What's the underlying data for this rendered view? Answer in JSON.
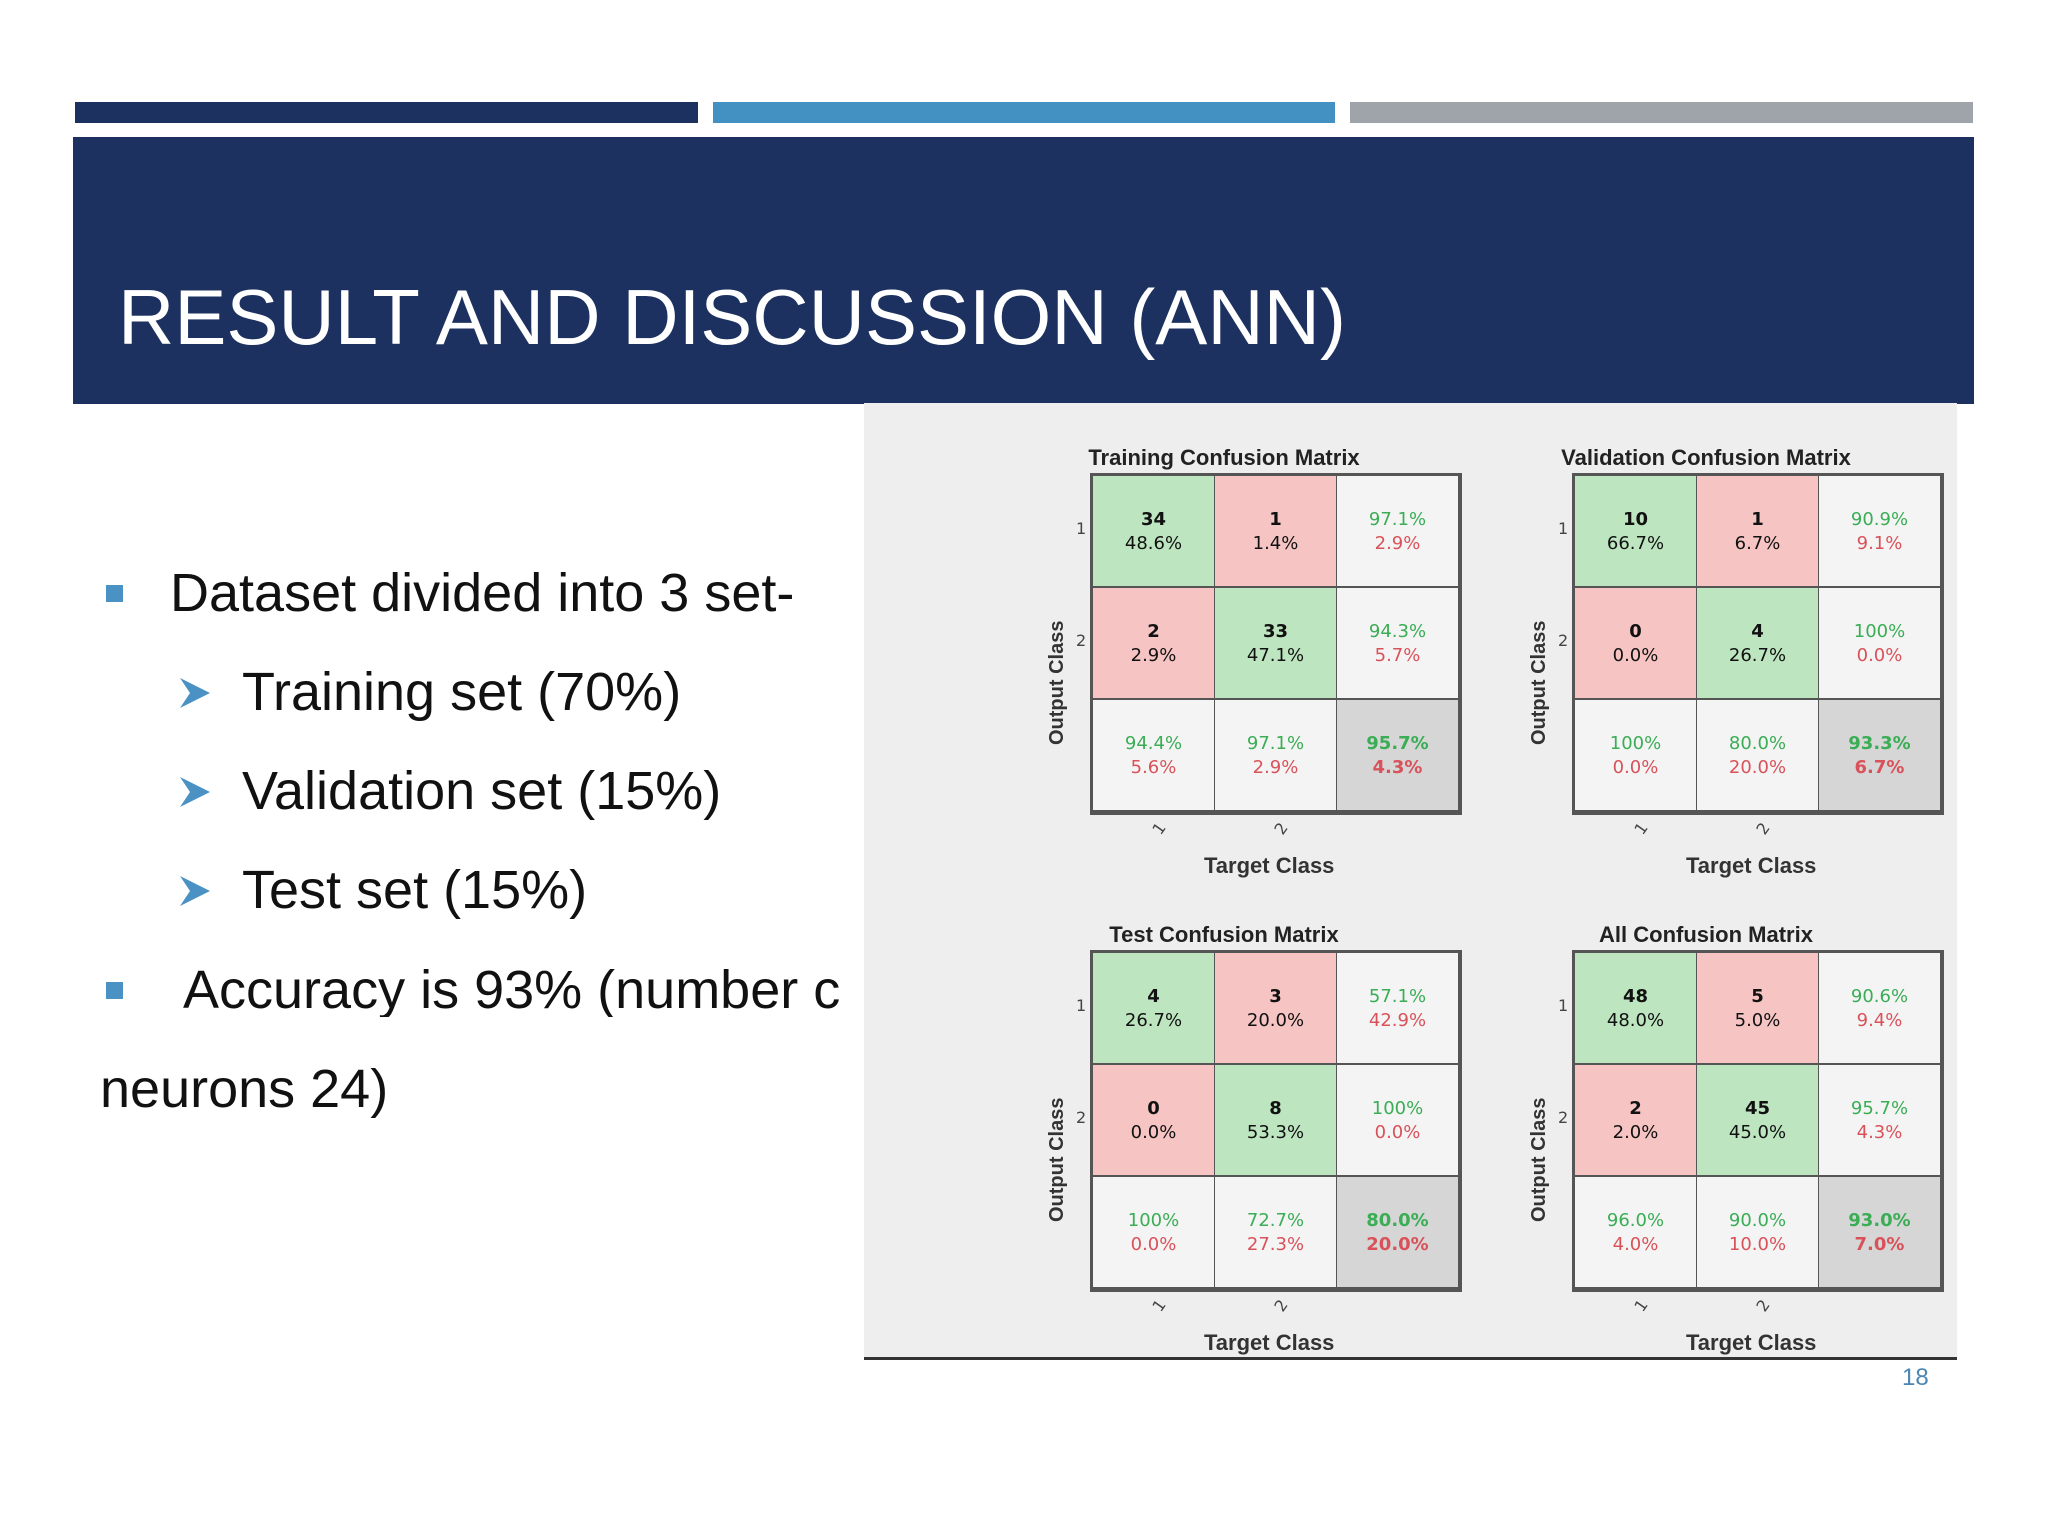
{
  "header": {
    "title": "RESULT AND DISCUSSION (ANN)"
  },
  "bullets": {
    "b1": "Dataset divided into 3 set-",
    "sub1": "Training set (70%)",
    "sub2": "Validation set (15%)",
    "sub3": "Test set (15%)",
    "b2_line1": "Accuracy is 93% (number c",
    "b2_line2": "neurons 24)"
  },
  "colors": {
    "title_band": "#1c315f",
    "bar_dark": "#1d3160",
    "bar_blue": "#4391c3",
    "bar_gray": "#9fa4aa",
    "bullet": "#4a92c4",
    "correct_cell": "#bde5bf",
    "wrong_cell": "#f5c4c3"
  },
  "icons": {
    "bullet": "square-bullet-icon",
    "sub_bullet": "arrow-bullet-icon"
  },
  "slide_number": "18",
  "chart_data": [
    {
      "type": "table",
      "title": "Training Confusion Matrix",
      "xlabel": "Target Class",
      "ylabel": "Output Class",
      "classes": [
        "1",
        "2"
      ],
      "cells": [
        [
          "34",
          "48.6%",
          "1",
          "1.4%",
          "97.1%",
          "2.9%"
        ],
        [
          "2",
          "2.9%",
          "33",
          "47.1%",
          "94.3%",
          "5.7%"
        ],
        [
          "94.4%",
          "5.6%",
          "97.1%",
          "2.9%",
          "95.7%",
          "4.3%"
        ]
      ]
    },
    {
      "type": "table",
      "title": "Validation Confusion Matrix",
      "xlabel": "Target Class",
      "ylabel": "Output Class",
      "classes": [
        "1",
        "2"
      ],
      "cells": [
        [
          "10",
          "66.7%",
          "1",
          "6.7%",
          "90.9%",
          "9.1%"
        ],
        [
          "0",
          "0.0%",
          "4",
          "26.7%",
          "100%",
          "0.0%"
        ],
        [
          "100%",
          "0.0%",
          "80.0%",
          "20.0%",
          "93.3%",
          "6.7%"
        ]
      ]
    },
    {
      "type": "table",
      "title": "Test Confusion Matrix",
      "xlabel": "Target Class",
      "ylabel": "Output Class",
      "classes": [
        "1",
        "2"
      ],
      "cells": [
        [
          "4",
          "26.7%",
          "3",
          "20.0%",
          "57.1%",
          "42.9%"
        ],
        [
          "0",
          "0.0%",
          "8",
          "53.3%",
          "100%",
          "0.0%"
        ],
        [
          "100%",
          "0.0%",
          "72.7%",
          "27.3%",
          "80.0%",
          "20.0%"
        ]
      ]
    },
    {
      "type": "table",
      "title": "All Confusion Matrix",
      "xlabel": "Target Class",
      "ylabel": "Output Class",
      "classes": [
        "1",
        "2"
      ],
      "cells": [
        [
          "48",
          "48.0%",
          "5",
          "5.0%",
          "90.6%",
          "9.4%"
        ],
        [
          "2",
          "2.0%",
          "45",
          "45.0%",
          "95.7%",
          "4.3%"
        ],
        [
          "96.0%",
          "4.0%",
          "90.0%",
          "10.0%",
          "93.0%",
          "7.0%"
        ]
      ]
    }
  ]
}
